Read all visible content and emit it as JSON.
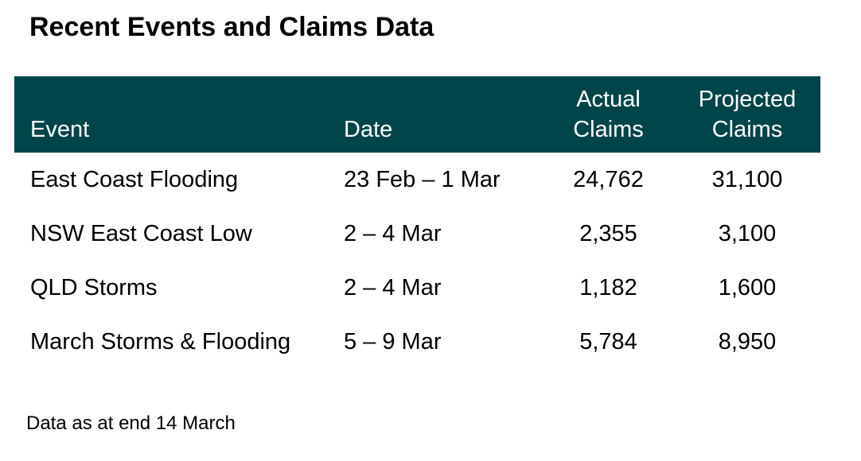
{
  "page": {
    "title": "Recent Events and Claims Data",
    "footnote": "Data as at end 14 March"
  },
  "colors": {
    "header_background": "#004549",
    "header_text": "#ffffff",
    "body_text": "#000000"
  },
  "table": {
    "headers": {
      "event": "Event",
      "date": "Date",
      "actual_line1": "Actual",
      "actual_line2": "Claims",
      "projected_line1": "Projected",
      "projected_line2": "Claims"
    },
    "rows": [
      {
        "event": "East Coast Flooding",
        "date": "23 Feb – 1 Mar",
        "actual": "24,762",
        "projected": "31,100"
      },
      {
        "event": "NSW East Coast Low",
        "date": "2 – 4 Mar",
        "actual": "2,355",
        "projected": "3,100"
      },
      {
        "event": "QLD Storms",
        "date": "2 – 4 Mar",
        "actual": "1,182",
        "projected": "1,600"
      },
      {
        "event": "March Storms & Flooding",
        "date": "5 – 9 Mar",
        "actual": "5,784",
        "projected": "8,950"
      }
    ]
  }
}
